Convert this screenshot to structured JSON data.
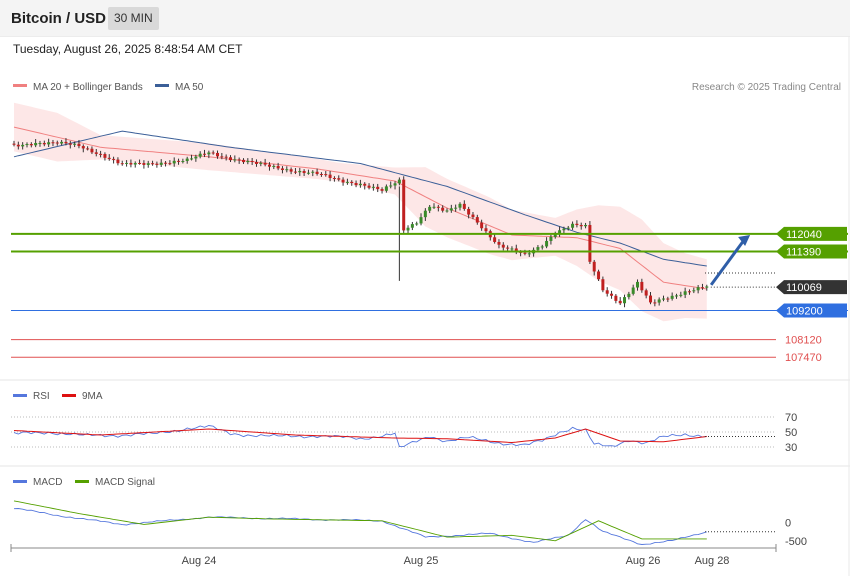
{
  "header": {
    "title": "Bitcoin / USD",
    "timeframe_button": "30 MIN",
    "datetime": "Tuesday, August 26, 2025 8:48:54 AM CET"
  },
  "colors": {
    "ma20": "#f08080",
    "ma50": "#3b5f98",
    "bollinger_fill": "#fde3e3",
    "green_level": "#55a000",
    "blue_level": "#2f6fe0",
    "red_level": "#e05050",
    "current_price": "#333333",
    "rsi": "#5577dd",
    "rsi_ma": "#dd1111",
    "macd": "#5577dd",
    "macd_signal": "#55a000",
    "arrow": "#2f5ea8"
  },
  "chart_data": [
    {
      "type": "candlestick",
      "panel": "price",
      "legend": [
        {
          "name": "MA 20 + Bollinger Bands",
          "color": "#f08080"
        },
        {
          "name": "MA 50",
          "color": "#3b5f98"
        }
      ],
      "credit": "Research © 2025 Trading Central",
      "x_ticks": [
        "Aug 24",
        "Aug 25",
        "Aug 26",
        "Aug 28"
      ],
      "ylim": [
        106700,
        117300
      ],
      "current_price": 110069,
      "levels": [
        {
          "value": 112040,
          "label": "112040",
          "style": "resistance"
        },
        {
          "value": 111390,
          "label": "111390",
          "style": "resistance"
        },
        {
          "value": 110069,
          "label": "110069",
          "style": "current"
        },
        {
          "value": 109200,
          "label": "109200",
          "style": "pivot"
        },
        {
          "value": 108120,
          "label": "108120",
          "style": "support"
        },
        {
          "value": 107470,
          "label": "107470",
          "style": "support"
        }
      ],
      "close_series_anchors": [
        [
          0,
          115300
        ],
        [
          5,
          115430
        ],
        [
          10,
          115400
        ],
        [
          15,
          115300
        ],
        [
          20,
          115000
        ],
        [
          25,
          114600
        ],
        [
          30,
          114630
        ],
        [
          35,
          114700
        ],
        [
          40,
          114760
        ],
        [
          45,
          115060
        ],
        [
          50,
          114850
        ],
        [
          55,
          114660
        ],
        [
          60,
          114520
        ],
        [
          65,
          114380
        ],
        [
          70,
          114260
        ],
        [
          75,
          114030
        ],
        [
          80,
          113900
        ],
        [
          85,
          113630
        ],
        [
          89,
          114000
        ],
        [
          90,
          112200
        ],
        [
          93,
          112500
        ],
        [
          96,
          113100
        ],
        [
          100,
          112850
        ],
        [
          103,
          113100
        ],
        [
          107,
          112500
        ],
        [
          112,
          111600
        ],
        [
          118,
          111250
        ],
        [
          122,
          111650
        ],
        [
          125,
          112100
        ],
        [
          129,
          112350
        ],
        [
          132,
          112300
        ],
        [
          133,
          111000
        ],
        [
          136,
          110000
        ],
        [
          140,
          109500
        ],
        [
          144,
          110200
        ],
        [
          147,
          109450
        ],
        [
          150,
          109650
        ],
        [
          155,
          109900
        ],
        [
          160,
          110069
        ]
      ],
      "ma20_anchors": [
        [
          0,
          116000
        ],
        [
          20,
          115250
        ],
        [
          45,
          114900
        ],
        [
          70,
          114450
        ],
        [
          88,
          114000
        ],
        [
          100,
          113000
        ],
        [
          115,
          112000
        ],
        [
          130,
          111900
        ],
        [
          140,
          111500
        ],
        [
          150,
          110250
        ],
        [
          160,
          110000
        ]
      ],
      "ma50_anchors": [
        [
          0,
          114900
        ],
        [
          25,
          115850
        ],
        [
          50,
          115250
        ],
        [
          80,
          114650
        ],
        [
          100,
          113800
        ],
        [
          118,
          112750
        ],
        [
          130,
          112100
        ],
        [
          140,
          111700
        ],
        [
          150,
          111100
        ],
        [
          160,
          110850
        ]
      ],
      "bollinger_width_anchors": [
        [
          0,
          900
        ],
        [
          10,
          900
        ],
        [
          20,
          450
        ],
        [
          45,
          500
        ],
        [
          75,
          350
        ],
        [
          88,
          500
        ],
        [
          95,
          1100
        ],
        [
          110,
          1050
        ],
        [
          125,
          700
        ],
        [
          135,
          1400
        ],
        [
          145,
          1700
        ],
        [
          155,
          1200
        ],
        [
          160,
          1100
        ]
      ],
      "projection": {
        "from": [
          161,
          110150
        ],
        "to": [
          170,
          112000
        ]
      }
    },
    {
      "type": "line",
      "panel": "rsi",
      "series": [
        {
          "name": "RSI",
          "color": "#5577dd"
        },
        {
          "name": "9MA",
          "color": "#dd1111"
        }
      ],
      "y_ticks": [
        70,
        50,
        30
      ],
      "ylim": [
        10,
        90
      ],
      "rsi_anchors": [
        [
          0,
          47
        ],
        [
          8,
          50
        ],
        [
          16,
          45
        ],
        [
          24,
          46
        ],
        [
          32,
          47
        ],
        [
          40,
          55
        ],
        [
          45,
          57
        ],
        [
          50,
          48
        ],
        [
          60,
          44
        ],
        [
          70,
          45
        ],
        [
          80,
          41
        ],
        [
          88,
          48
        ],
        [
          89,
          28
        ],
        [
          92,
          35
        ],
        [
          96,
          45
        ],
        [
          100,
          38
        ],
        [
          105,
          42
        ],
        [
          112,
          36
        ],
        [
          118,
          32
        ],
        [
          122,
          38
        ],
        [
          126,
          50
        ],
        [
          129,
          56
        ],
        [
          132,
          52
        ],
        [
          134,
          33
        ],
        [
          138,
          30
        ],
        [
          142,
          40
        ],
        [
          146,
          35
        ],
        [
          150,
          43
        ],
        [
          155,
          47
        ],
        [
          160,
          45
        ]
      ],
      "ma_anchors": [
        [
          0,
          52
        ],
        [
          20,
          46
        ],
        [
          45,
          54
        ],
        [
          65,
          46
        ],
        [
          88,
          42
        ],
        [
          100,
          41
        ],
        [
          115,
          36
        ],
        [
          125,
          42
        ],
        [
          132,
          54
        ],
        [
          140,
          38
        ],
        [
          150,
          37
        ],
        [
          160,
          44
        ]
      ]
    },
    {
      "type": "line",
      "panel": "macd",
      "series": [
        {
          "name": "MACD",
          "color": "#5577dd"
        },
        {
          "name": "MACD Signal",
          "color": "#55a000"
        }
      ],
      "y_ticks": [
        0,
        -500
      ],
      "ylim": [
        -700,
        900
      ],
      "macd_anchors": [
        [
          0,
          400
        ],
        [
          10,
          200
        ],
        [
          25,
          -50
        ],
        [
          45,
          150
        ],
        [
          65,
          100
        ],
        [
          85,
          50
        ],
        [
          95,
          -400
        ],
        [
          110,
          -300
        ],
        [
          120,
          -550
        ],
        [
          128,
          -350
        ],
        [
          132,
          100
        ],
        [
          136,
          -250
        ],
        [
          145,
          -600
        ],
        [
          152,
          -500
        ],
        [
          160,
          -250
        ]
      ],
      "signal_anchors": [
        [
          0,
          600
        ],
        [
          15,
          250
        ],
        [
          30,
          -50
        ],
        [
          45,
          150
        ],
        [
          60,
          100
        ],
        [
          85,
          50
        ],
        [
          100,
          -400
        ],
        [
          115,
          -350
        ],
        [
          125,
          -500
        ],
        [
          135,
          50
        ],
        [
          145,
          -450
        ],
        [
          160,
          -450
        ]
      ]
    }
  ]
}
